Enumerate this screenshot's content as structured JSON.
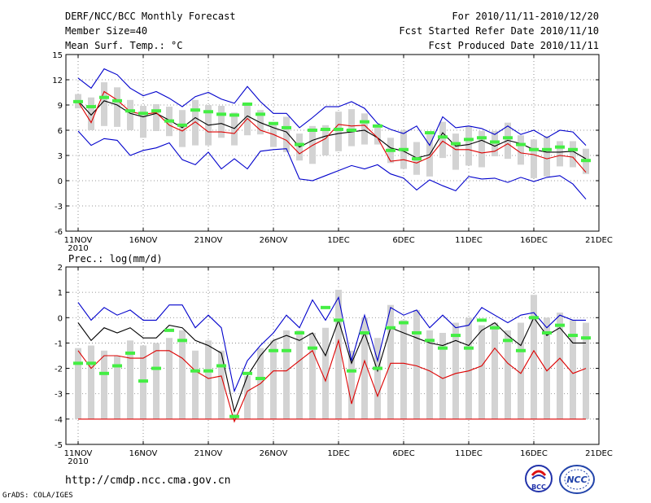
{
  "header": {
    "title": "DERF/NCC/BCC Monthly Forecast",
    "member_size": "Member Size=40",
    "variable": "Mean Surf. Temp.: °C",
    "period": "For 2010/11/11-2010/12/20",
    "start_date": "Fcst Started Refer Date 2010/11/10",
    "produced_date": "Fcst Produced Date 2010/11/11"
  },
  "footer": {
    "url": "http://cmdp.ncc.cma.gov.cn",
    "credit": "GrADS: COLA/IGES",
    "logo_left": "BCC",
    "logo_right": "NCC"
  },
  "colors": {
    "max_min": "#0000cc",
    "mean": "#000000",
    "median": "#dd0000",
    "box": "#d3d3d3",
    "obs": "#44ee44"
  },
  "chart_data": [
    {
      "type": "box-line",
      "title": "Mean Surf. Temp.: °C",
      "ylabel": "",
      "ylim": [
        -6,
        15
      ],
      "yticks": [
        -6,
        -3,
        0,
        3,
        6,
        9,
        12,
        15
      ],
      "ytick_labels": [
        "-6",
        "-3",
        "0",
        "3",
        "6",
        "9",
        "12",
        "15"
      ],
      "x": [
        "11NOV",
        "12NOV",
        "13NOV",
        "14NOV",
        "15NOV",
        "16NOV",
        "17NOV",
        "18NOV",
        "19NOV",
        "20NOV",
        "21NOV",
        "22NOV",
        "23NOV",
        "24NOV",
        "25NOV",
        "26NOV",
        "27NOV",
        "28NOV",
        "29NOV",
        "30NOV",
        "1DEC",
        "2DEC",
        "3DEC",
        "4DEC",
        "5DEC",
        "6DEC",
        "7DEC",
        "8DEC",
        "9DEC",
        "10DEC",
        "11DEC",
        "12DEC",
        "13DEC",
        "14DEC",
        "15DEC",
        "16DEC",
        "17DEC",
        "18DEC",
        "19DEC",
        "20DEC"
      ],
      "xtick_labels": [
        "11NOV",
        "16NOV",
        "21NOV",
        "26NOV",
        "1DEC",
        "6DEC",
        "11DEC",
        "16DEC",
        "21DEC"
      ],
      "year_label": "2010",
      "grid": true,
      "series": [
        {
          "name": "max",
          "color": "#0000cc",
          "values": [
            12.2,
            11,
            13.3,
            12.6,
            11,
            10.1,
            10.6,
            9.8,
            8.8,
            10,
            10.5,
            9.7,
            9.2,
            11.2,
            9.4,
            8,
            8,
            6.3,
            7.5,
            8.8,
            8.8,
            9.4,
            8.6,
            6.8,
            6.1,
            5.6,
            6.5,
            4.2,
            7.6,
            6.3,
            6.5,
            6.2,
            5.5,
            6.5,
            5.5,
            6,
            5.1,
            6,
            5.8,
            4.2
          ]
        },
        {
          "name": "min",
          "color": "#0000cc",
          "values": [
            5.9,
            4.2,
            5,
            4.8,
            3,
            3.6,
            3.9,
            4.5,
            2.5,
            1.9,
            3.4,
            1.4,
            2.6,
            1.4,
            3.5,
            3.7,
            3.8,
            0.2,
            0,
            0.6,
            1.2,
            1.8,
            1.4,
            1.9,
            0.8,
            0.3,
            -1.1,
            0.1,
            -0.6,
            -1.2,
            0.5,
            0.2,
            0.3,
            -0.2,
            0.4,
            -0.1,
            0.4,
            0.6,
            -0.4,
            -2.2
          ]
        },
        {
          "name": "mean",
          "color": "#000000",
          "values": [
            9.5,
            7.8,
            9.5,
            9,
            8,
            7.6,
            8,
            7.2,
            6.3,
            7.5,
            6.6,
            6.8,
            6.2,
            7.7,
            6.9,
            6.3,
            5.8,
            4,
            4.8,
            5.3,
            5.6,
            5.8,
            6,
            5.1,
            3.9,
            3.5,
            2.7,
            3.1,
            5.7,
            4.1,
            4.3,
            4.8,
            4.1,
            4.8,
            4.4,
            3.7,
            3.4,
            3.4,
            3.5,
            2.6
          ]
        },
        {
          "name": "median",
          "color": "#dd0000",
          "values": [
            9.4,
            6.9,
            10.6,
            9.6,
            8.2,
            7.9,
            8.1,
            6.6,
            5.9,
            7,
            5.8,
            5.8,
            5.6,
            7.4,
            6,
            5.5,
            4.8,
            3.2,
            4.2,
            5,
            6.7,
            6.5,
            6.6,
            5.1,
            2.3,
            2.5,
            2.1,
            2.8,
            4.7,
            3.7,
            3.7,
            3.3,
            3.5,
            4.4,
            3.3,
            3.1,
            2.6,
            3,
            2.8,
            1
          ]
        },
        {
          "name": "obs",
          "color": "#44ee44",
          "values": [
            9.4,
            8.8,
            9.9,
            9.5,
            8.3,
            8,
            8.3,
            7.1,
            6.6,
            8.4,
            8.2,
            7.9,
            7.8,
            9.1,
            7.9,
            6.8,
            6.3,
            4.3,
            6,
            6.1,
            6.1,
            6,
            7,
            6.5,
            3.6,
            3.7,
            2.6,
            5.7,
            5.2,
            4.4,
            4.9,
            5.1,
            4.6,
            5.1,
            4.3,
            3.7,
            3.7,
            4,
            3.7,
            2.4
          ]
        }
      ],
      "boxes": {
        "low": [
          8.6,
          6,
          6.5,
          6.4,
          6,
          5.1,
          5.9,
          5.3,
          4,
          4.2,
          4.2,
          5.1,
          4.2,
          5.4,
          5.5,
          4,
          3.4,
          2.4,
          2,
          3,
          3.5,
          4.1,
          4.3,
          4.3,
          2.1,
          1.4,
          0.7,
          0.5,
          2.7,
          1.3,
          1.8,
          1.6,
          2.9,
          2.6,
          1.9,
          0.3,
          0.5,
          1.7,
          1.6,
          0.8
        ],
        "high": [
          10.3,
          9.9,
          11.7,
          11.1,
          9.6,
          8.9,
          9.1,
          8.8,
          8.4,
          9.6,
          9,
          8.9,
          8.1,
          9.3,
          8.4,
          6.7,
          7.6,
          5.6,
          6.5,
          6.6,
          8.2,
          8.5,
          8,
          6.3,
          5.1,
          6,
          4.6,
          5.5,
          7,
          5.6,
          6.5,
          5.9,
          5.9,
          6.9,
          5.4,
          4.9,
          5.3,
          4.7,
          4.7,
          3.8
        ]
      }
    },
    {
      "type": "box-line",
      "title": "Prec.: log(mm/d)",
      "ylabel": "",
      "ylim": [
        -5,
        2
      ],
      "yticks": [
        -5,
        -4,
        -3,
        -2,
        -1,
        0,
        1,
        2
      ],
      "ytick_labels": [
        "-5",
        "-4",
        "-3",
        "-2",
        "-1",
        "0",
        "1",
        "2"
      ],
      "x": [
        "11NOV",
        "12NOV",
        "13NOV",
        "14NOV",
        "15NOV",
        "16NOV",
        "17NOV",
        "18NOV",
        "19NOV",
        "20NOV",
        "21NOV",
        "22NOV",
        "23NOV",
        "24NOV",
        "25NOV",
        "26NOV",
        "27NOV",
        "28NOV",
        "29NOV",
        "30NOV",
        "1DEC",
        "2DEC",
        "3DEC",
        "4DEC",
        "5DEC",
        "6DEC",
        "7DEC",
        "8DEC",
        "9DEC",
        "10DEC",
        "11DEC",
        "12DEC",
        "13DEC",
        "14DEC",
        "15DEC",
        "16DEC",
        "17DEC",
        "18DEC",
        "19DEC",
        "20DEC"
      ],
      "xtick_labels": [
        "11NOV",
        "16NOV",
        "21NOV",
        "26NOV",
        "1DEC",
        "6DEC",
        "11DEC",
        "16DEC",
        "21DEC"
      ],
      "year_label": "2010",
      "grid": true,
      "series": [
        {
          "name": "max",
          "color": "#0000cc",
          "values": [
            0.6,
            -0.1,
            0.4,
            0.1,
            0.3,
            -0.1,
            -0.1,
            0.5,
            0.5,
            -0.4,
            0.1,
            -0.4,
            -2.9,
            -1.7,
            -1.1,
            -0.6,
            0.1,
            -0.4,
            0.7,
            -0.1,
            0.8,
            -1.7,
            0.1,
            -1.7,
            0.4,
            0.1,
            0.3,
            -0.4,
            0.1,
            -0.4,
            -0.3,
            0.4,
            0.1,
            -0.2,
            0.1,
            0.2,
            -0.4,
            0.1,
            -0.1,
            -0.1
          ]
        },
        {
          "name": "mean",
          "color": "#000000",
          "values": [
            -0.2,
            -0.9,
            -0.4,
            -0.6,
            -0.4,
            -0.8,
            -0.8,
            -0.3,
            -0.4,
            -0.9,
            -1.1,
            -1.4,
            -3.7,
            -2.3,
            -1.5,
            -0.9,
            -0.7,
            -0.9,
            -0.6,
            -1.5,
            -0.1,
            -1.8,
            -0.6,
            -2.1,
            -0.4,
            -0.6,
            -0.8,
            -1,
            -1.1,
            -0.9,
            -1.1,
            -0.5,
            -0.2,
            -0.7,
            -1.1,
            0,
            -0.7,
            -0.4,
            -1,
            -1
          ]
        },
        {
          "name": "median",
          "color": "#dd0000",
          "values": [
            -1.3,
            -2,
            -1.5,
            -1.5,
            -1.6,
            -1.6,
            -1.3,
            -1.3,
            -1.6,
            -2.1,
            -2.4,
            -2.3,
            -4.1,
            -2.9,
            -2.6,
            -2.1,
            -2.1,
            -1.7,
            -1.3,
            -2.5,
            -0.9,
            -3.4,
            -1.7,
            -3.1,
            -1.8,
            -1.8,
            -1.9,
            -2.1,
            -2.4,
            -2.2,
            -2.1,
            -1.9,
            -1.2,
            -1.8,
            -2.2,
            -1.3,
            -2.1,
            -1.6,
            -2.2,
            -2
          ]
        },
        {
          "name": "floor",
          "color": "#dd0000",
          "values": [
            -4,
            -4,
            -4,
            -4,
            -4,
            -4,
            -4,
            -4,
            -4,
            -4,
            -4,
            -4,
            -4,
            -4,
            -4,
            -4,
            -4,
            -4,
            -4,
            -4,
            -4,
            -4,
            -4,
            -4,
            -4,
            -4,
            -4,
            -4,
            -4,
            -4,
            -4,
            -4,
            -4,
            -4,
            -4,
            -4,
            -4,
            -4,
            -4,
            -4
          ]
        },
        {
          "name": "obs",
          "color": "#44ee44",
          "values": [
            -1.8,
            -1.8,
            -2.2,
            -1.9,
            -1.4,
            -2.5,
            -2,
            -0.5,
            -0.9,
            -2.1,
            -2.1,
            -1.9,
            -3.9,
            -2.2,
            -2.4,
            -1.3,
            -1.3,
            -0.6,
            -1.2,
            0.4,
            -0.1,
            -2.1,
            -0.6,
            -2,
            -0.4,
            -0.2,
            -0.6,
            -0.9,
            -1.2,
            -0.7,
            -1.2,
            -0.1,
            -0.4,
            -0.9,
            -1.3,
            0,
            -0.6,
            -0.3,
            -0.7,
            -0.8
          ]
        }
      ],
      "boxes": {
        "low": [
          -4,
          -4,
          -4,
          -4,
          -4,
          -4,
          -4,
          -4,
          -4,
          -4,
          -4,
          -4,
          -4,
          -4,
          -4,
          -4,
          -4,
          -4,
          -4,
          -4,
          -4,
          -4,
          -4,
          -4,
          -4,
          -4,
          -4,
          -4,
          -4,
          -4,
          -4,
          -4,
          -4,
          -4,
          -4,
          -4,
          -4,
          -4,
          -4,
          -4
        ],
        "high": [
          -1.2,
          -1.1,
          -1.3,
          -1.5,
          -0.9,
          -1.1,
          -1,
          -0.8,
          -0.5,
          -1.3,
          -0.9,
          -1.3,
          -3.8,
          -2.3,
          -1.2,
          -0.9,
          -0.5,
          -0.5,
          -0.6,
          -0.4,
          1.1,
          -1.3,
          0,
          -0.8,
          0.5,
          -0.1,
          0.3,
          -0.5,
          -0.6,
          -0.2,
          0,
          -0.3,
          -0.2,
          -0.5,
          -0.2,
          0.9,
          0,
          0.2,
          -0.1,
          -0.2
        ]
      }
    }
  ]
}
